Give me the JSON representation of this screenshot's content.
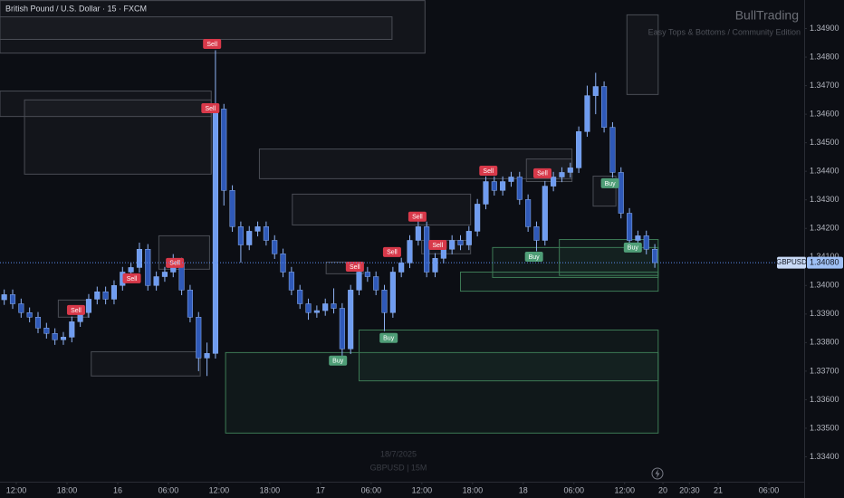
{
  "chart_data": {
    "type": "candlestick",
    "title": "British Pound / U.S. Dollar · 15 · FXCM",
    "watermark_title": "BullTrading",
    "watermark_subtitle": "Easy Tops & Bottoms / Community Edition",
    "date_watermark": "18/7/2025",
    "symbol_watermark": "GBPUSD | 15M",
    "symbol": "GBPUSD",
    "last_price": {
      "value": 1.3408,
      "label": "1.34080"
    },
    "up_color": "#6f9cf0",
    "down_color": "#2f59b8",
    "wick_color": "#8fb3f5",
    "grid": false,
    "ylim": [
      1.333,
      1.35
    ],
    "yticks": [
      {
        "value": 1.349,
        "label": "1.34900"
      },
      {
        "value": 1.348,
        "label": "1.34800"
      },
      {
        "value": 1.347,
        "label": "1.34700"
      },
      {
        "value": 1.346,
        "label": "1.34600"
      },
      {
        "value": 1.345,
        "label": "1.34500"
      },
      {
        "value": 1.344,
        "label": "1.34400"
      },
      {
        "value": 1.343,
        "label": "1.34300"
      },
      {
        "value": 1.342,
        "label": "1.34200"
      },
      {
        "value": 1.341,
        "label": "1.34100"
      },
      {
        "value": 1.34,
        "label": "1.34000"
      },
      {
        "value": 1.339,
        "label": "1.33900"
      },
      {
        "value": 1.338,
        "label": "1.33800"
      },
      {
        "value": 1.337,
        "label": "1.33700"
      },
      {
        "value": 1.336,
        "label": "1.33600"
      },
      {
        "value": 1.335,
        "label": "1.33500"
      },
      {
        "value": 1.334,
        "label": "1.33400"
      }
    ],
    "xticks": [
      {
        "value": 1.43,
        "label": "12:00"
      },
      {
        "value": 7.43,
        "label": "18:00"
      },
      {
        "value": 13.43,
        "label": "16"
      },
      {
        "value": 19.43,
        "label": "06:00"
      },
      {
        "value": 25.43,
        "label": "12:00"
      },
      {
        "value": 31.43,
        "label": "18:00"
      },
      {
        "value": 37.43,
        "label": "17"
      },
      {
        "value": 43.43,
        "label": "06:00"
      },
      {
        "value": 49.43,
        "label": "12:00"
      },
      {
        "value": 55.43,
        "label": "18:00"
      },
      {
        "value": 61.43,
        "label": "18"
      },
      {
        "value": 67.43,
        "label": "06:00"
      },
      {
        "value": 73.43,
        "label": "12:00"
      },
      {
        "value": 77.96,
        "label": "20"
      },
      {
        "value": 81.1,
        "label": "20:30"
      },
      {
        "value": 84.5,
        "label": "21"
      },
      {
        "value": 90.5,
        "label": "06:00"
      }
    ],
    "open": [
      1.3395,
      1.33968,
      1.33936,
      1.33905,
      1.33889,
      1.33851,
      1.33832,
      1.3381,
      1.33819,
      1.33873,
      1.33905,
      1.33952,
      1.33978,
      1.33952,
      1.34,
      1.34047,
      1.34063,
      1.34127,
      1.34,
      1.34031,
      1.34047,
      1.34079,
      1.33984,
      1.33889,
      1.33746,
      1.33762,
      1.34618,
      1.34333,
      1.34206,
      1.34142,
      1.3419,
      1.34206,
      1.34158,
      1.34111,
      1.34047,
      1.33984,
      1.33936,
      1.33905,
      1.33912,
      1.33936,
      1.3392,
      1.33778,
      1.33984,
      1.34047,
      1.34031,
      1.33984,
      1.33905,
      1.34047,
      1.34079,
      1.34158,
      1.34206,
      1.34047,
      1.34095,
      1.34127,
      1.34158,
      1.34142,
      1.3419,
      1.34285,
      1.34364,
      1.34333,
      1.34364,
      1.3438,
      1.34301,
      1.34206,
      1.34158,
      1.34348,
      1.3438,
      1.34396,
      1.34412,
      1.34539,
      1.34665,
      1.34697,
      1.34554,
      1.34396,
      1.34253,
      1.34158,
      1.34174,
      1.34127
    ],
    "high": [
      1.33986,
      1.33986,
      1.33954,
      1.33923,
      1.33907,
      1.33869,
      1.3385,
      1.33837,
      1.33891,
      1.33923,
      1.3397,
      1.33996,
      1.33996,
      1.34018,
      1.34065,
      1.34081,
      1.3415,
      1.34145,
      1.34049,
      1.34065,
      1.3411,
      1.34097,
      1.34002,
      1.33907,
      1.338,
      1.34824,
      1.34636,
      1.34351,
      1.34224,
      1.34208,
      1.34224,
      1.34224,
      1.34176,
      1.34129,
      1.34065,
      1.34002,
      1.33954,
      1.3393,
      1.33954,
      1.3399,
      1.33938,
      1.34002,
      1.3408,
      1.34065,
      1.34049,
      1.34002,
      1.34065,
      1.34097,
      1.34176,
      1.3424,
      1.34224,
      1.34113,
      1.34145,
      1.34176,
      1.34176,
      1.34208,
      1.34303,
      1.34382,
      1.34382,
      1.34382,
      1.34398,
      1.34398,
      1.34319,
      1.34224,
      1.34366,
      1.34398,
      1.34414,
      1.3443,
      1.34557,
      1.347,
      1.34745,
      1.34715,
      1.34572,
      1.34414,
      1.34271,
      1.34192,
      1.34192,
      1.34145
    ],
    "low": [
      1.33932,
      1.33918,
      1.33887,
      1.33871,
      1.33833,
      1.33814,
      1.33792,
      1.33792,
      1.33801,
      1.33855,
      1.33887,
      1.33934,
      1.33934,
      1.33934,
      1.33982,
      1.34029,
      1.34045,
      1.33982,
      1.33982,
      1.34013,
      1.34029,
      1.33966,
      1.33871,
      1.337,
      1.33683,
      1.33744,
      1.3428,
      1.34188,
      1.3408,
      1.34124,
      1.34172,
      1.3414,
      1.34093,
      1.34029,
      1.33966,
      1.33918,
      1.3388,
      1.33887,
      1.33894,
      1.33902,
      1.3375,
      1.3376,
      1.33966,
      1.34013,
      1.33966,
      1.3384,
      1.33887,
      1.34029,
      1.34061,
      1.3414,
      1.34029,
      1.34029,
      1.34077,
      1.34109,
      1.34124,
      1.34124,
      1.34172,
      1.34267,
      1.34315,
      1.34315,
      1.34346,
      1.34283,
      1.34188,
      1.3412,
      1.3414,
      1.3433,
      1.34362,
      1.34378,
      1.34394,
      1.34521,
      1.346,
      1.34536,
      1.34378,
      1.34235,
      1.3414,
      1.3414,
      1.34109,
      1.34062
    ],
    "close": [
      1.33968,
      1.33936,
      1.33905,
      1.33889,
      1.33851,
      1.33832,
      1.3381,
      1.33819,
      1.33873,
      1.33905,
      1.33952,
      1.33978,
      1.33952,
      1.34,
      1.34047,
      1.34063,
      1.34127,
      1.34,
      1.34031,
      1.34047,
      1.34079,
      1.33984,
      1.33889,
      1.33746,
      1.33762,
      1.34618,
      1.34333,
      1.34206,
      1.34142,
      1.3419,
      1.34206,
      1.34158,
      1.34111,
      1.34047,
      1.33984,
      1.33936,
      1.33905,
      1.33912,
      1.33936,
      1.3392,
      1.33778,
      1.33984,
      1.34047,
      1.34031,
      1.33984,
      1.33905,
      1.34047,
      1.34079,
      1.34158,
      1.34206,
      1.34047,
      1.34095,
      1.34127,
      1.34158,
      1.34142,
      1.3419,
      1.34285,
      1.34364,
      1.34333,
      1.34364,
      1.3438,
      1.34301,
      1.34206,
      1.34158,
      1.34348,
      1.3438,
      1.34396,
      1.34412,
      1.34539,
      1.34665,
      1.34697,
      1.34554,
      1.34396,
      1.34253,
      1.34158,
      1.34174,
      1.34127,
      1.3408
    ],
    "zones": [
      {
        "x0": -0.5,
        "x1": 49.8,
        "top": 1.34998,
        "bottom": 1.34814,
        "color": "#4a4d55"
      },
      {
        "x0": -0.5,
        "x1": 45.9,
        "top": 1.34941,
        "bottom": 1.34862,
        "color": "#4a4d55"
      },
      {
        "x0": -0.5,
        "x1": 24.5,
        "top": 1.34681,
        "bottom": 1.34592,
        "color": "#4a4d55"
      },
      {
        "x0": 2.4,
        "x1": 24.5,
        "top": 1.3465,
        "bottom": 1.3439,
        "color": "#4a4d55"
      },
      {
        "x0": 6.4,
        "x1": 9.9,
        "top": 1.33949,
        "bottom": 1.33889,
        "color": "#4a4d55"
      },
      {
        "x0": 18.3,
        "x1": 24.3,
        "top": 1.34174,
        "bottom": 1.34057,
        "color": "#4a4d55"
      },
      {
        "x0": 10.3,
        "x1": 23.2,
        "top": 1.33768,
        "bottom": 1.33683,
        "color": "#4a4d55"
      },
      {
        "x0": 30.2,
        "x1": 67.2,
        "top": 1.34478,
        "bottom": 1.34374,
        "color": "#4a4d55"
      },
      {
        "x0": 34.1,
        "x1": 55.2,
        "top": 1.3432,
        "bottom": 1.34212,
        "color": "#4a4d55"
      },
      {
        "x0": 38.1,
        "x1": 42.5,
        "top": 1.34082,
        "bottom": 1.34041,
        "color": "#4a4d55"
      },
      {
        "x0": 49.4,
        "x1": 55.2,
        "top": 1.34158,
        "bottom": 1.34111,
        "color": "#4a4d55"
      },
      {
        "x0": 61.8,
        "x1": 67.2,
        "top": 1.34443,
        "bottom": 1.34364,
        "color": "#4a4d55"
      },
      {
        "x0": 69.7,
        "x1": 72.4,
        "top": 1.34383,
        "bottom": 1.34278,
        "color": "#4a4d55"
      },
      {
        "x0": 73.7,
        "x1": 77.4,
        "top": 1.34948,
        "bottom": 1.34669,
        "color": "#4a4d55"
      },
      {
        "x0": 26.2,
        "x1": 77.4,
        "top": 1.33765,
        "bottom": 1.33483,
        "color": "#3d7a55"
      },
      {
        "x0": 42.0,
        "x1": 77.4,
        "top": 1.33844,
        "bottom": 1.33666,
        "color": "#3d7a55"
      },
      {
        "x0": 54.0,
        "x1": 77.4,
        "top": 1.34047,
        "bottom": 1.3398,
        "color": "#3d7a55"
      },
      {
        "x0": 57.8,
        "x1": 77.4,
        "top": 1.34133,
        "bottom": 1.34028,
        "color": "#3d7a55"
      },
      {
        "x0": 65.7,
        "x1": 77.4,
        "top": 1.34161,
        "bottom": 1.34035,
        "color": "#3d7a55"
      }
    ],
    "signals": [
      {
        "text": "Sell",
        "x": 24.6,
        "price": 1.34846,
        "color": "#d8394a"
      },
      {
        "text": "Sell",
        "x": 24.4,
        "price": 1.34621,
        "color": "#d8394a"
      },
      {
        "text": "Sell",
        "x": 8.5,
        "price": 1.33914,
        "color": "#d8394a"
      },
      {
        "text": "Sell",
        "x": 15.1,
        "price": 1.34025,
        "color": "#d8394a"
      },
      {
        "text": "Sell",
        "x": 20.2,
        "price": 1.34079,
        "color": "#d8394a"
      },
      {
        "text": "Sell",
        "x": 41.5,
        "price": 1.34066,
        "color": "#d8394a"
      },
      {
        "text": "Sell",
        "x": 45.9,
        "price": 1.34117,
        "color": "#d8394a"
      },
      {
        "text": "Sell",
        "x": 48.9,
        "price": 1.34241,
        "color": "#d8394a"
      },
      {
        "text": "Sell",
        "x": 51.3,
        "price": 1.34142,
        "color": "#d8394a"
      },
      {
        "text": "Sell",
        "x": 57.3,
        "price": 1.34402,
        "color": "#d8394a"
      },
      {
        "text": "Sell",
        "x": 63.7,
        "price": 1.34393,
        "color": "#d8394a"
      },
      {
        "text": "Buy",
        "x": 39.5,
        "price": 1.33737,
        "color": "#4f9e77"
      },
      {
        "text": "Buy",
        "x": 45.5,
        "price": 1.33816,
        "color": "#4f9e77"
      },
      {
        "text": "Buy",
        "x": 62.7,
        "price": 1.34101,
        "color": "#4f9e77"
      },
      {
        "text": "Buy",
        "x": 71.7,
        "price": 1.34358,
        "color": "#4f9e77"
      },
      {
        "text": "Buy",
        "x": 74.4,
        "price": 1.34133,
        "color": "#4f9e77"
      }
    ]
  }
}
